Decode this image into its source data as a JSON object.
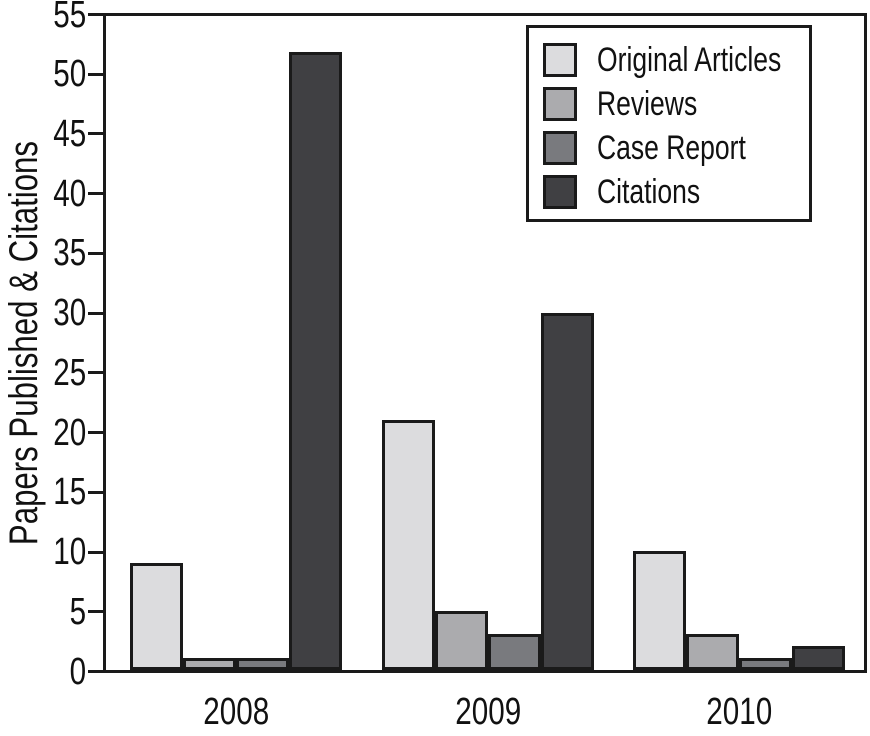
{
  "chart_data": {
    "type": "bar",
    "ylabel": "Papers Published & Citations",
    "xlabel": "",
    "ylim": [
      0,
      55
    ],
    "ytick_step": 5,
    "grid": false,
    "legend_position": "top-right",
    "categories": [
      "2008",
      "2009",
      "2010"
    ],
    "series": [
      {
        "name": "Original Articles",
        "color": "#dcdcde",
        "values": [
          9,
          21,
          10
        ]
      },
      {
        "name": "Reviews",
        "color": "#ababae",
        "values": [
          1,
          5,
          3
        ]
      },
      {
        "name": "Case Report",
        "color": "#797a7e",
        "values": [
          1,
          3,
          1
        ]
      },
      {
        "name": "Citations",
        "color": "#404043",
        "values": [
          52,
          30,
          2
        ]
      }
    ],
    "colors": {
      "axis": "#1a1a1a",
      "background": "#ffffff",
      "text": "#111111"
    }
  }
}
